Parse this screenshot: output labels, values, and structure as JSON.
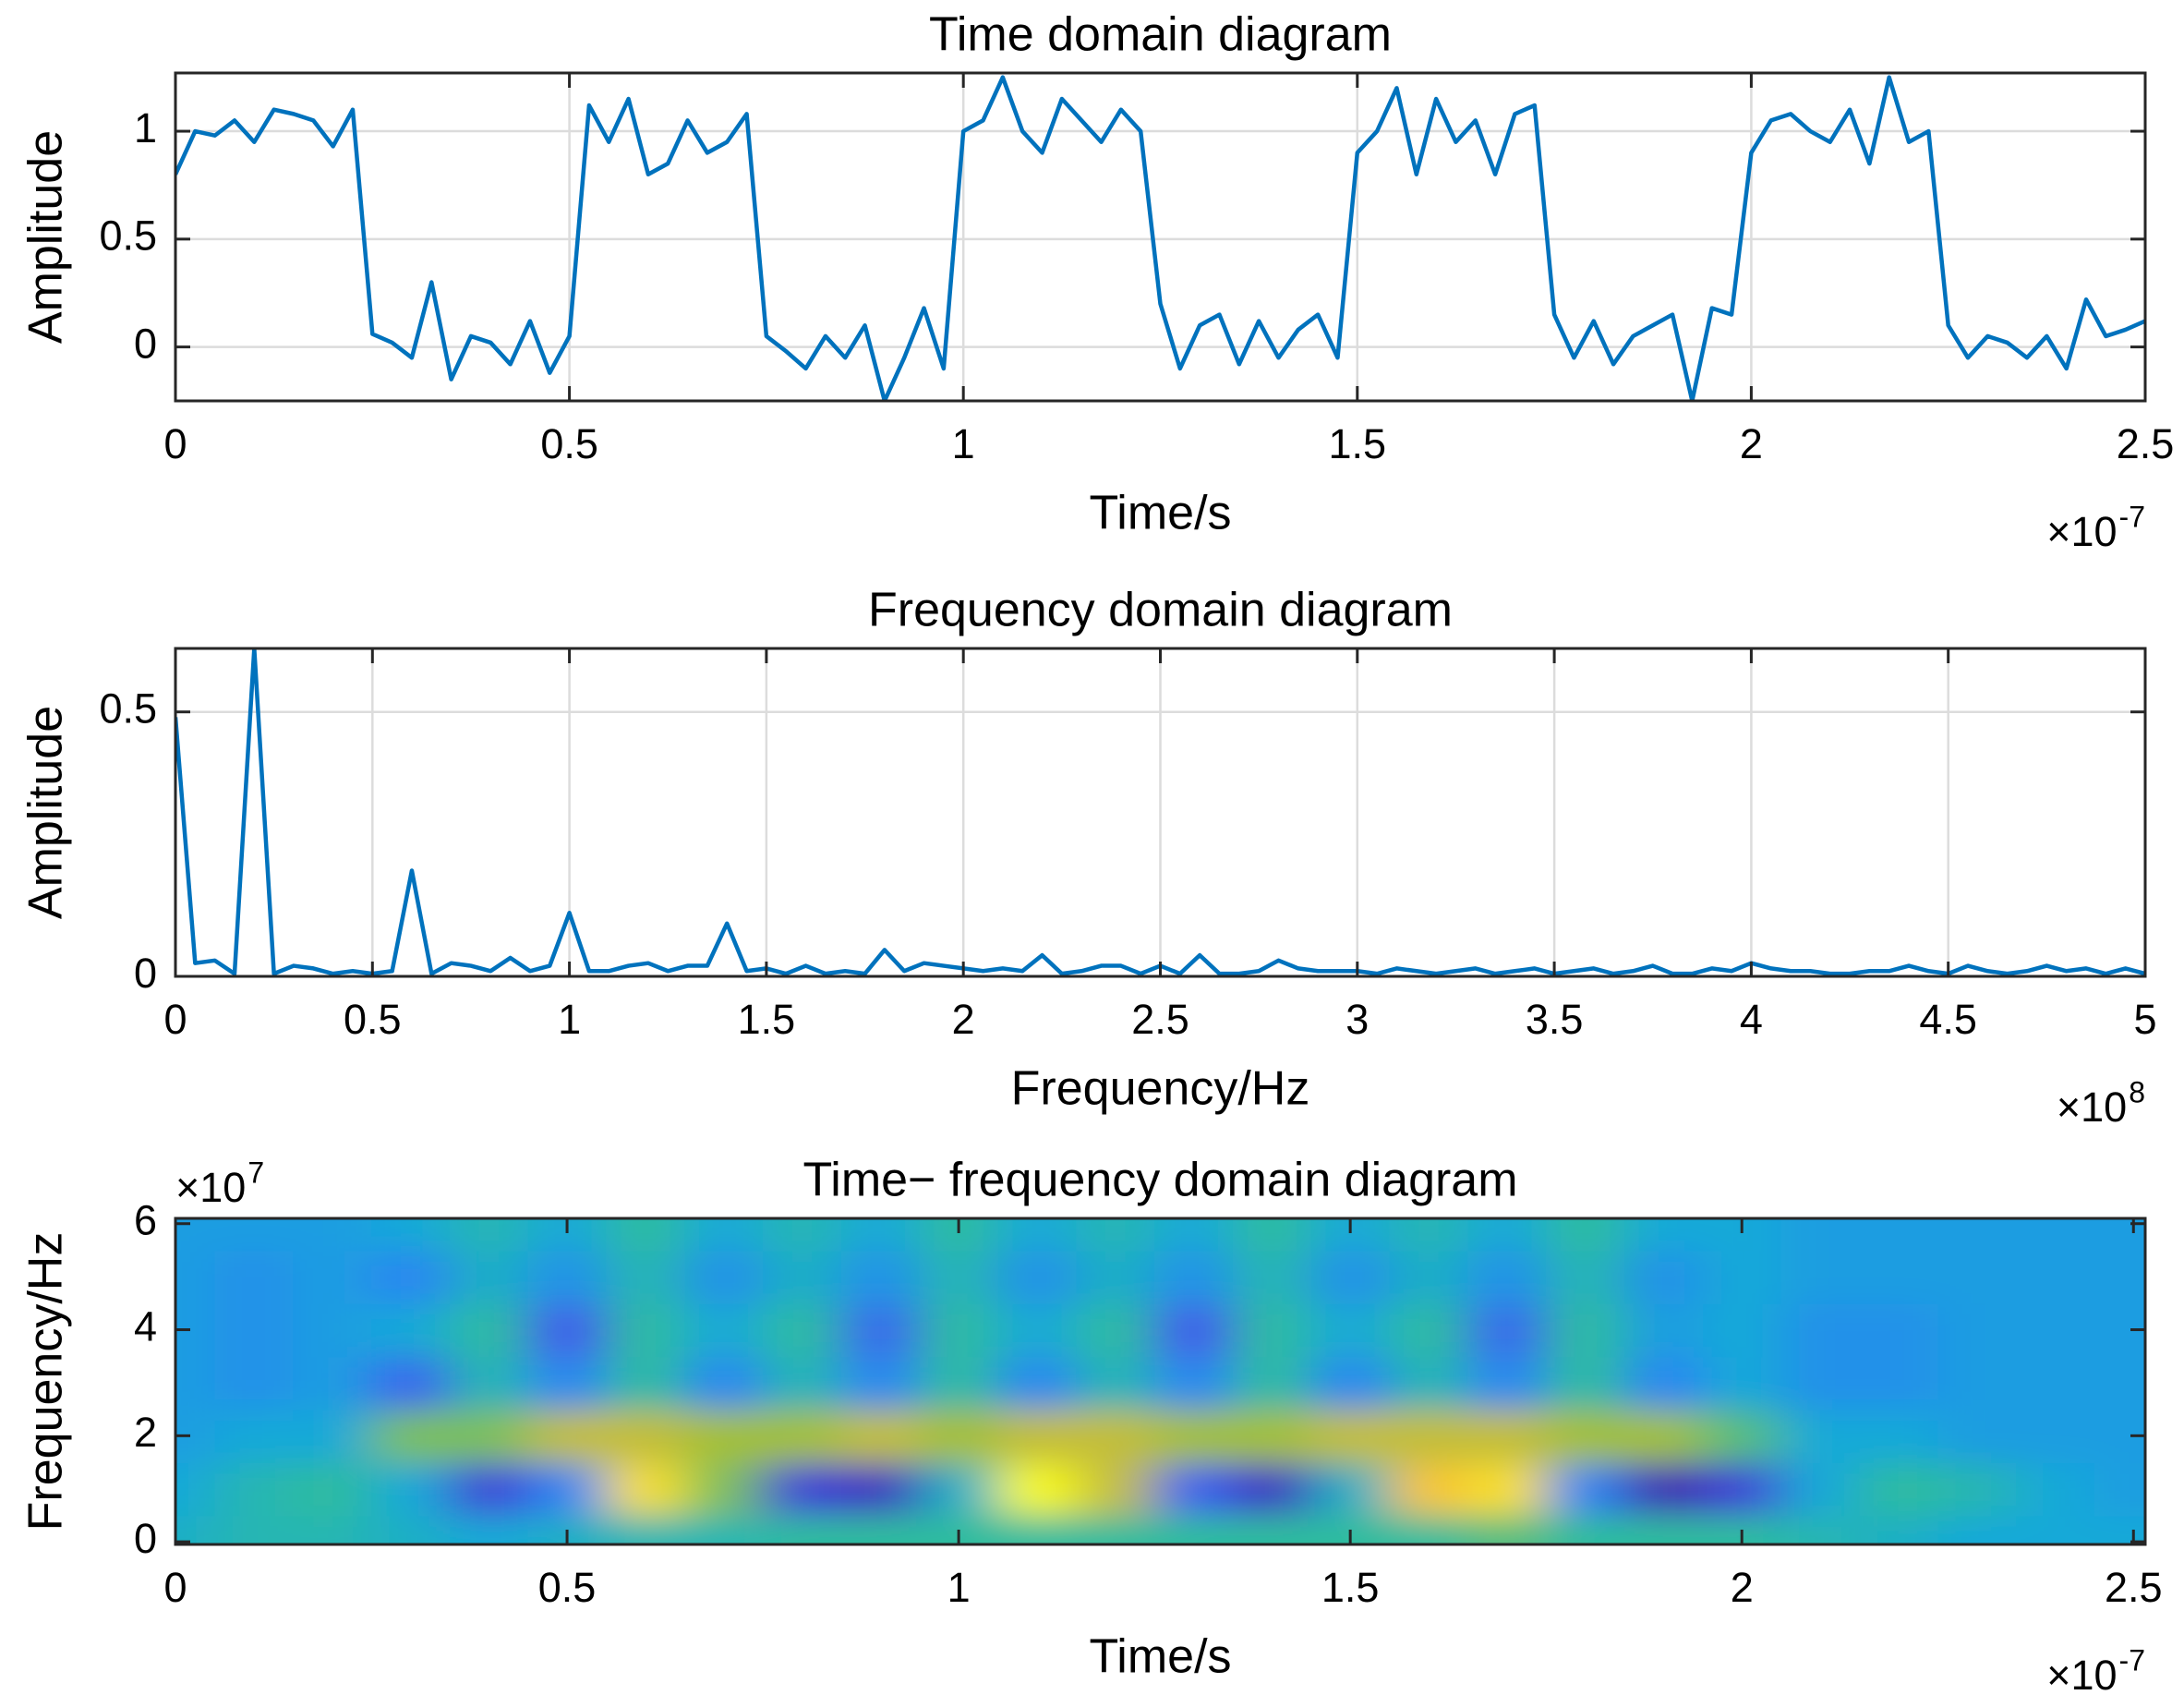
{
  "chart_data": [
    {
      "type": "line",
      "title": "Time domain diagram",
      "xlabel": "Time/s",
      "ylabel": "Amplitude",
      "x_multiplier": "×10",
      "x_exponent": "-7",
      "x": [
        0,
        0.025,
        0.05,
        0.075,
        0.1,
        0.125,
        0.15,
        0.175,
        0.2,
        0.225,
        0.25,
        0.275,
        0.3,
        0.325,
        0.35,
        0.375,
        0.4,
        0.425,
        0.45,
        0.475,
        0.5,
        0.525,
        0.55,
        0.575,
        0.6,
        0.625,
        0.65,
        0.675,
        0.7,
        0.725,
        0.75,
        0.775,
        0.8,
        0.825,
        0.85,
        0.875,
        0.9,
        0.925,
        0.95,
        0.975,
        1,
        1.025,
        1.05,
        1.075,
        1.1,
        1.125,
        1.15,
        1.175,
        1.2,
        1.225,
        1.25,
        1.275,
        1.3,
        1.325,
        1.35,
        1.375,
        1.4,
        1.425,
        1.45,
        1.475,
        1.5,
        1.525,
        1.55,
        1.575,
        1.6,
        1.625,
        1.65,
        1.675,
        1.7,
        1.725,
        1.75,
        1.775,
        1.8,
        1.825,
        1.85,
        1.875,
        1.9,
        1.925,
        1.95,
        1.975,
        2,
        2.025,
        2.05,
        2.075,
        2.1,
        2.125,
        2.15,
        2.175,
        2.2,
        2.225,
        2.25,
        2.275,
        2.3,
        2.325,
        2.35,
        2.375,
        2.4,
        2.425,
        2.45,
        2.475,
        2.5
      ],
      "values": [
        0.8,
        1.0,
        0.98,
        1.05,
        0.95,
        1.1,
        1.08,
        1.05,
        0.93,
        1.1,
        0.06,
        0.02,
        -0.05,
        0.3,
        -0.15,
        0.05,
        0.02,
        -0.08,
        0.12,
        -0.12,
        0.05,
        1.12,
        0.95,
        1.15,
        0.8,
        0.85,
        1.05,
        0.9,
        0.95,
        1.08,
        0.05,
        -0.02,
        -0.1,
        0.05,
        -0.05,
        0.1,
        -0.25,
        -0.05,
        0.18,
        -0.1,
        1.0,
        1.05,
        1.25,
        1.0,
        0.9,
        1.15,
        1.05,
        0.95,
        1.1,
        1.0,
        0.2,
        -0.1,
        0.1,
        0.15,
        -0.08,
        0.12,
        -0.05,
        0.08,
        0.15,
        -0.05,
        0.9,
        1.0,
        1.2,
        0.8,
        1.15,
        0.95,
        1.05,
        0.8,
        1.08,
        1.12,
        0.15,
        -0.05,
        0.12,
        -0.08,
        0.05,
        0.1,
        0.15,
        -0.25,
        0.18,
        0.15,
        0.9,
        1.05,
        1.08,
        1.0,
        0.95,
        1.1,
        0.85,
        1.25,
        0.95,
        1.0,
        0.1,
        -0.05,
        0.05,
        0.02,
        -0.05,
        0.05,
        -0.1,
        0.22,
        0.05,
        0.08,
        0.12
      ],
      "color": "#0072bd",
      "xlim": [
        0,
        2.5
      ],
      "ylim": [
        -0.25,
        1.27
      ],
      "xticks": [
        0,
        0.5,
        1,
        1.5,
        2,
        2.5
      ],
      "yticks": [
        0,
        0.5,
        1
      ],
      "grid": true
    },
    {
      "type": "line",
      "title": "Frequency domain diagram",
      "xlabel": "Frequency/Hz",
      "ylabel": "Amplitude",
      "x_multiplier": "×10",
      "x_exponent": "8",
      "x": [
        0,
        0.05,
        0.1,
        0.15,
        0.2,
        0.25,
        0.3,
        0.35,
        0.4,
        0.45,
        0.5,
        0.55,
        0.6,
        0.65,
        0.7,
        0.75,
        0.8,
        0.85,
        0.9,
        0.95,
        1,
        1.05,
        1.1,
        1.15,
        1.2,
        1.25,
        1.3,
        1.35,
        1.4,
        1.45,
        1.5,
        1.55,
        1.6,
        1.65,
        1.7,
        1.75,
        1.8,
        1.85,
        1.9,
        1.95,
        2,
        2.05,
        2.1,
        2.15,
        2.2,
        2.25,
        2.3,
        2.35,
        2.4,
        2.45,
        2.5,
        2.55,
        2.6,
        2.65,
        2.7,
        2.75,
        2.8,
        2.85,
        2.9,
        2.95,
        3,
        3.05,
        3.1,
        3.15,
        3.2,
        3.25,
        3.3,
        3.35,
        3.4,
        3.45,
        3.5,
        3.55,
        3.6,
        3.65,
        3.7,
        3.75,
        3.8,
        3.85,
        3.9,
        3.95,
        4,
        4.05,
        4.1,
        4.15,
        4.2,
        4.25,
        4.3,
        4.35,
        4.4,
        4.45,
        4.5,
        4.55,
        4.6,
        4.65,
        4.7,
        4.75,
        4.8,
        4.85,
        4.9,
        4.95,
        5
      ],
      "values": [
        0.49,
        0.025,
        0.03,
        0.005,
        0.62,
        0.005,
        0.02,
        0.015,
        0.005,
        0.01,
        0.005,
        0.01,
        0.2,
        0.005,
        0.025,
        0.02,
        0.01,
        0.035,
        0.01,
        0.02,
        0.12,
        0.01,
        0.01,
        0.02,
        0.025,
        0.01,
        0.02,
        0.02,
        0.1,
        0.01,
        0.015,
        0.005,
        0.02,
        0.005,
        0.01,
        0.005,
        0.05,
        0.01,
        0.025,
        0.02,
        0.015,
        0.01,
        0.015,
        0.01,
        0.04,
        0.005,
        0.01,
        0.02,
        0.02,
        0.005,
        0.02,
        0.005,
        0.04,
        0.005,
        0.005,
        0.01,
        0.03,
        0.015,
        0.01,
        0.01,
        0.01,
        0.005,
        0.015,
        0.01,
        0.005,
        0.01,
        0.015,
        0.005,
        0.01,
        0.015,
        0.005,
        0.01,
        0.015,
        0.005,
        0.01,
        0.02,
        0.005,
        0.005,
        0.015,
        0.01,
        0.025,
        0.015,
        0.01,
        0.01,
        0.005,
        0.005,
        0.01,
        0.01,
        0.02,
        0.01,
        0.005,
        0.02,
        0.01,
        0.005,
        0.01,
        0.02,
        0.01,
        0.015,
        0.005,
        0.015,
        0.005
      ],
      "color": "#0072bd",
      "xlim": [
        0,
        5
      ],
      "ylim": [
        0,
        0.62
      ],
      "xticks": [
        0,
        0.5,
        1,
        1.5,
        2,
        2.5,
        3,
        3.5,
        4,
        4.5,
        5
      ],
      "yticks": [
        0,
        0.5
      ],
      "grid": true
    },
    {
      "type": "heatmap",
      "title": "Time− frequency domain diagram",
      "xlabel": "Time/s",
      "ylabel": "Frequency/Hz",
      "x_multiplier": "×10",
      "x_exponent": "-7",
      "y_multiplier": "×10",
      "y_exponent": "7",
      "x": [
        0,
        0.1,
        0.2,
        0.3,
        0.4,
        0.5,
        0.6,
        0.7,
        0.8,
        0.9,
        1,
        1.1,
        1.2,
        1.3,
        1.4,
        1.5,
        1.6,
        1.7,
        1.8,
        1.9,
        2,
        2.1,
        2.2,
        2.3,
        2.4,
        2.5
      ],
      "y": [
        0,
        1,
        2,
        3,
        4,
        5,
        6
      ],
      "z": [
        [
          0.5,
          0.55,
          0.55,
          0.5,
          0.45,
          0.5,
          0.55,
          0.55,
          0.6,
          0.6,
          0.6,
          0.6,
          0.6,
          0.6,
          0.6,
          0.6,
          0.6,
          0.65,
          0.6,
          0.6,
          0.6,
          0.55,
          0.5,
          0.45,
          0.45,
          0.45
        ],
        [
          0.45,
          0.55,
          0.6,
          0.45,
          0.1,
          0.3,
          0.95,
          0.7,
          0.1,
          0.05,
          0.5,
          1.0,
          0.8,
          0.2,
          0.05,
          0.5,
          0.9,
          0.95,
          0.3,
          0.02,
          0.1,
          0.45,
          0.6,
          0.55,
          0.45,
          0.4
        ],
        [
          0.4,
          0.45,
          0.45,
          0.7,
          0.7,
          0.8,
          0.8,
          0.75,
          0.75,
          0.8,
          0.75,
          0.8,
          0.8,
          0.75,
          0.75,
          0.8,
          0.8,
          0.8,
          0.75,
          0.75,
          0.65,
          0.45,
          0.45,
          0.4,
          0.4,
          0.4
        ],
        [
          0.4,
          0.35,
          0.4,
          0.2,
          0.55,
          0.3,
          0.6,
          0.3,
          0.55,
          0.3,
          0.6,
          0.3,
          0.55,
          0.3,
          0.6,
          0.3,
          0.55,
          0.3,
          0.6,
          0.3,
          0.45,
          0.35,
          0.35,
          0.4,
          0.4,
          0.4
        ],
        [
          0.4,
          0.35,
          0.4,
          0.45,
          0.6,
          0.15,
          0.6,
          0.45,
          0.6,
          0.2,
          0.6,
          0.45,
          0.6,
          0.15,
          0.6,
          0.45,
          0.6,
          0.2,
          0.6,
          0.4,
          0.45,
          0.35,
          0.35,
          0.4,
          0.4,
          0.4
        ],
        [
          0.4,
          0.35,
          0.4,
          0.3,
          0.5,
          0.35,
          0.55,
          0.35,
          0.5,
          0.35,
          0.55,
          0.35,
          0.5,
          0.35,
          0.55,
          0.35,
          0.5,
          0.35,
          0.55,
          0.35,
          0.45,
          0.4,
          0.4,
          0.4,
          0.4,
          0.4
        ],
        [
          0.4,
          0.4,
          0.4,
          0.45,
          0.55,
          0.45,
          0.6,
          0.45,
          0.55,
          0.45,
          0.6,
          0.45,
          0.55,
          0.45,
          0.6,
          0.45,
          0.55,
          0.45,
          0.6,
          0.45,
          0.45,
          0.4,
          0.4,
          0.4,
          0.4,
          0.4
        ]
      ],
      "colormap": "parula",
      "xlim": [
        0,
        2.515
      ],
      "ylim": [
        -0.05,
        6.1
      ],
      "xticks": [
        0,
        0.5,
        1,
        1.5,
        2,
        2.5
      ],
      "yticks": [
        0,
        2,
        4,
        6
      ],
      "grid": false
    }
  ]
}
